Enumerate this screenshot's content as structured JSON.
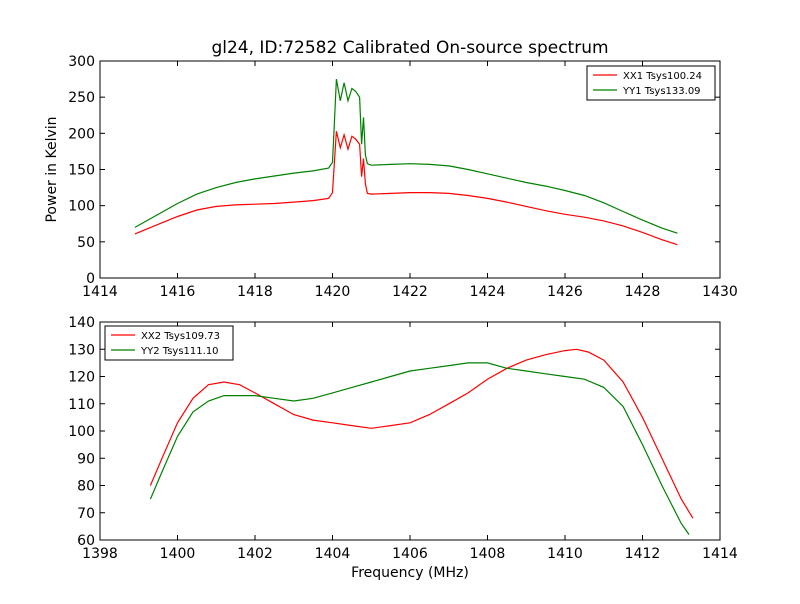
{
  "title": "gl24, ID:72582 Calibrated On-source spectrum",
  "chart_data": [
    {
      "type": "line",
      "ylabel": "Power in Kelvin",
      "xlabel": "",
      "xlim": [
        1414,
        1430
      ],
      "ylim": [
        0,
        300
      ],
      "xticks": [
        1414,
        1416,
        1418,
        1420,
        1422,
        1424,
        1426,
        1428,
        1430
      ],
      "yticks": [
        0,
        50,
        100,
        150,
        200,
        250,
        300
      ],
      "legend_position": "top-right",
      "series": [
        {
          "name": "XX1 Tsys100.24",
          "color": "#ff0000",
          "x": [
            1414.9,
            1415.4,
            1416.0,
            1416.5,
            1417.0,
            1417.5,
            1418.0,
            1418.5,
            1419.0,
            1419.5,
            1419.9,
            1420.0,
            1420.05,
            1420.1,
            1420.2,
            1420.3,
            1420.4,
            1420.5,
            1420.6,
            1420.7,
            1420.75,
            1420.8,
            1420.85,
            1420.9,
            1421.0,
            1421.5,
            1422.0,
            1422.5,
            1423.0,
            1423.5,
            1424.0,
            1424.5,
            1425.0,
            1425.5,
            1426.0,
            1426.5,
            1427.0,
            1427.5,
            1428.0,
            1428.5,
            1428.9
          ],
          "y": [
            61,
            72,
            85,
            94,
            99,
            101,
            102,
            103,
            105,
            107,
            110,
            118,
            160,
            203,
            180,
            198,
            178,
            196,
            192,
            185,
            140,
            165,
            130,
            117,
            116,
            117,
            118,
            118,
            117,
            114,
            110,
            105,
            99,
            93,
            88,
            84,
            79,
            72,
            63,
            53,
            46
          ]
        },
        {
          "name": "YY1 Tsys133.09",
          "color": "#008000",
          "x": [
            1414.9,
            1415.4,
            1416.0,
            1416.5,
            1417.0,
            1417.5,
            1418.0,
            1418.5,
            1419.0,
            1419.5,
            1419.9,
            1420.0,
            1420.05,
            1420.1,
            1420.2,
            1420.3,
            1420.4,
            1420.5,
            1420.6,
            1420.7,
            1420.75,
            1420.8,
            1420.85,
            1420.9,
            1421.0,
            1421.5,
            1422.0,
            1422.5,
            1423.0,
            1423.5,
            1424.0,
            1424.5,
            1425.0,
            1425.5,
            1426.0,
            1426.5,
            1427.0,
            1427.5,
            1428.0,
            1428.5,
            1428.9
          ],
          "y": [
            70,
            85,
            103,
            116,
            125,
            132,
            137,
            141,
            145,
            148,
            152,
            160,
            215,
            275,
            245,
            270,
            245,
            262,
            258,
            250,
            185,
            222,
            170,
            158,
            156,
            157,
            158,
            157,
            155,
            150,
            144,
            138,
            132,
            127,
            121,
            114,
            104,
            92,
            80,
            69,
            62
          ]
        }
      ]
    },
    {
      "type": "line",
      "ylabel": "",
      "xlabel": "Frequency (MHz)",
      "xlim": [
        1398,
        1414
      ],
      "ylim": [
        60,
        140
      ],
      "xticks": [
        1398,
        1400,
        1402,
        1404,
        1406,
        1408,
        1410,
        1412,
        1414
      ],
      "yticks": [
        60,
        70,
        80,
        90,
        100,
        110,
        120,
        130,
        140
      ],
      "legend_position": "top-left",
      "series": [
        {
          "name": "XX2 Tsys109.73",
          "color": "#ff0000",
          "x": [
            1399.3,
            1399.6,
            1400.0,
            1400.4,
            1400.8,
            1401.2,
            1401.6,
            1402.0,
            1402.5,
            1403.0,
            1403.5,
            1404.0,
            1404.5,
            1405.0,
            1405.5,
            1406.0,
            1406.5,
            1407.0,
            1407.5,
            1408.0,
            1408.5,
            1409.0,
            1409.5,
            1410.0,
            1410.3,
            1410.6,
            1411.0,
            1411.5,
            1412.0,
            1412.5,
            1413.0,
            1413.3
          ],
          "y": [
            80,
            90,
            103,
            112,
            117,
            118,
            117,
            114,
            110,
            106,
            104,
            103,
            102,
            101,
            102,
            103,
            106,
            110,
            114,
            119,
            123,
            126,
            128,
            129.5,
            130,
            129,
            126,
            118,
            105,
            90,
            75,
            68
          ]
        },
        {
          "name": "YY2 Tsys111.10",
          "color": "#008000",
          "x": [
            1399.3,
            1399.6,
            1400.0,
            1400.4,
            1400.8,
            1401.2,
            1401.6,
            1402.0,
            1402.5,
            1403.0,
            1403.5,
            1404.0,
            1404.5,
            1405.0,
            1405.5,
            1406.0,
            1406.5,
            1407.0,
            1407.5,
            1408.0,
            1408.5,
            1409.0,
            1409.5,
            1410.0,
            1410.5,
            1411.0,
            1411.5,
            1412.0,
            1412.5,
            1413.0,
            1413.2
          ],
          "y": [
            75,
            85,
            98,
            107,
            111,
            113,
            113,
            113,
            112,
            111,
            112,
            114,
            116,
            118,
            120,
            122,
            123,
            124,
            125,
            125,
            123,
            122,
            121,
            120,
            119,
            116,
            109,
            95,
            80,
            66,
            62
          ]
        }
      ]
    }
  ]
}
